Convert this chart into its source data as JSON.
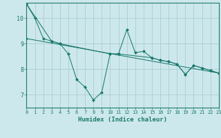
{
  "xlabel": "Humidex (Indice chaleur)",
  "background_color": "#cde8ec",
  "grid_color": "#aacdd3",
  "line_color": "#1a7a6e",
  "xlim": [
    0,
    23
  ],
  "ylim": [
    6.5,
    10.6
  ],
  "yticks": [
    7,
    8,
    9,
    10
  ],
  "xticks": [
    0,
    1,
    2,
    3,
    4,
    5,
    6,
    7,
    8,
    9,
    10,
    11,
    12,
    13,
    14,
    15,
    16,
    17,
    18,
    19,
    20,
    21,
    22,
    23
  ],
  "series": [
    {
      "x": [
        0,
        1,
        2,
        3,
        4,
        5,
        6,
        7,
        8,
        9,
        10,
        11,
        12,
        13,
        14,
        15,
        16,
        17,
        18,
        19,
        20,
        21,
        22,
        23
      ],
      "y": [
        10.55,
        10.0,
        9.2,
        9.1,
        9.0,
        8.6,
        7.6,
        7.3,
        6.8,
        7.1,
        8.6,
        8.6,
        9.55,
        8.65,
        8.7,
        8.45,
        8.35,
        8.3,
        8.2,
        7.8,
        8.15,
        8.05,
        7.95,
        7.85
      ]
    },
    {
      "x": [
        0,
        3,
        4,
        10,
        11,
        15,
        16,
        17,
        18,
        19,
        20,
        21,
        22,
        23
      ],
      "y": [
        10.55,
        9.1,
        9.0,
        8.6,
        8.6,
        8.45,
        8.35,
        8.3,
        8.2,
        7.8,
        8.15,
        8.05,
        7.95,
        7.85
      ]
    },
    {
      "x": [
        0,
        23
      ],
      "y": [
        9.2,
        7.85
      ]
    }
  ]
}
